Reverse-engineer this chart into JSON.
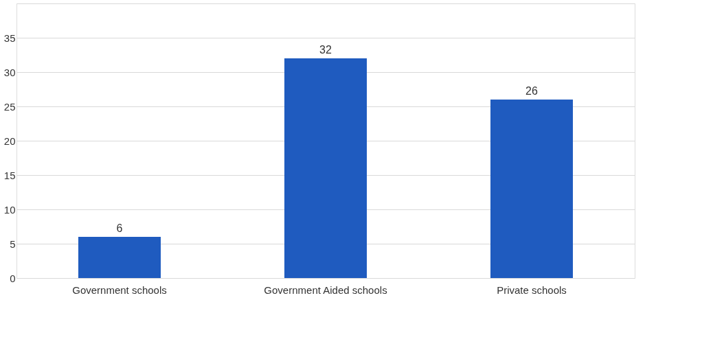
{
  "chart_data": {
    "type": "bar",
    "categories": [
      "Government schools",
      "Government Aided schools",
      "Private schools"
    ],
    "values": [
      6,
      32,
      26
    ],
    "color": "#1f5bbf",
    "ylim": [
      0,
      40
    ],
    "yticks": [
      0,
      5,
      10,
      15,
      20,
      25,
      30,
      35,
      {
        "value": 40,
        "label": null
      }
    ],
    "grid": "y",
    "data_labels": true
  }
}
